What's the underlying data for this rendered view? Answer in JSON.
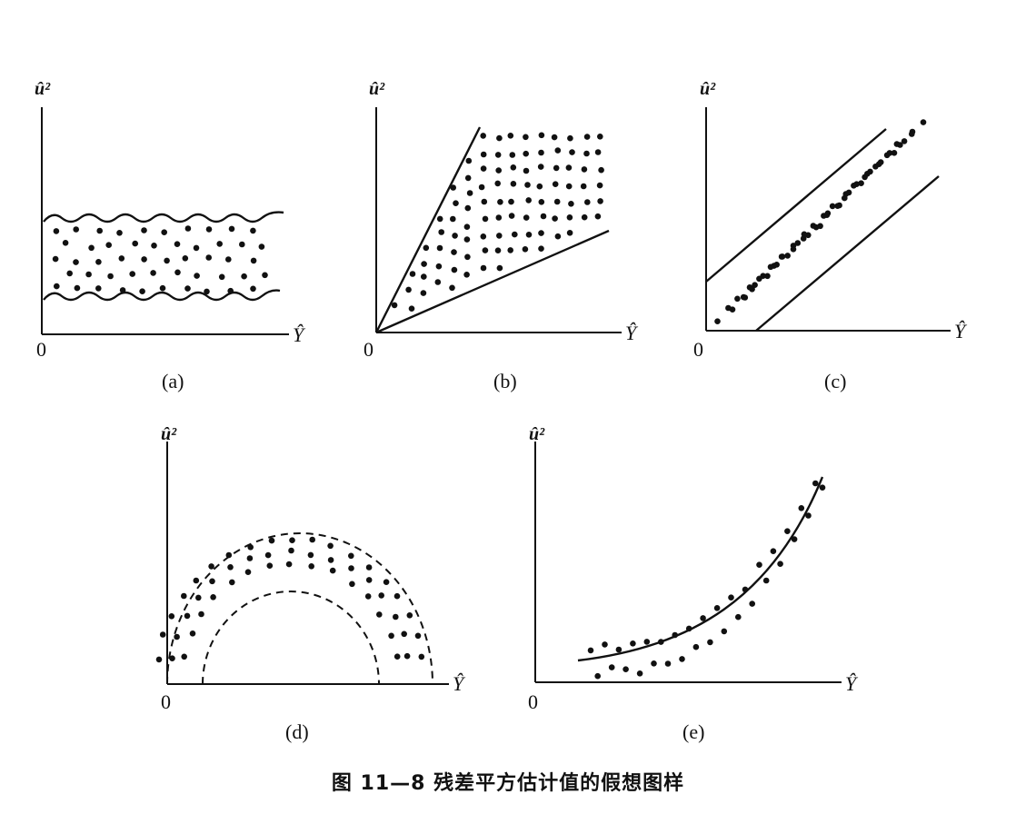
{
  "panels": [
    {
      "id": "a",
      "y_label": "û²",
      "x_label": "Ŷ",
      "origin": "0",
      "caption": "(a)"
    },
    {
      "id": "b",
      "y_label": "û²",
      "x_label": "Ŷ",
      "origin": "0",
      "caption": "(b)"
    },
    {
      "id": "c",
      "y_label": "û²",
      "x_label": "Ŷ",
      "origin": "0",
      "caption": "(c)"
    },
    {
      "id": "d",
      "y_label": "û²",
      "x_label": "Ŷ",
      "origin": "0",
      "caption": "(d)"
    },
    {
      "id": "e",
      "y_label": "û²",
      "x_label": "Ŷ",
      "origin": "0",
      "caption": "(e)"
    }
  ],
  "figure_caption": "图 11—8   残差平方估计值的假想图样"
}
